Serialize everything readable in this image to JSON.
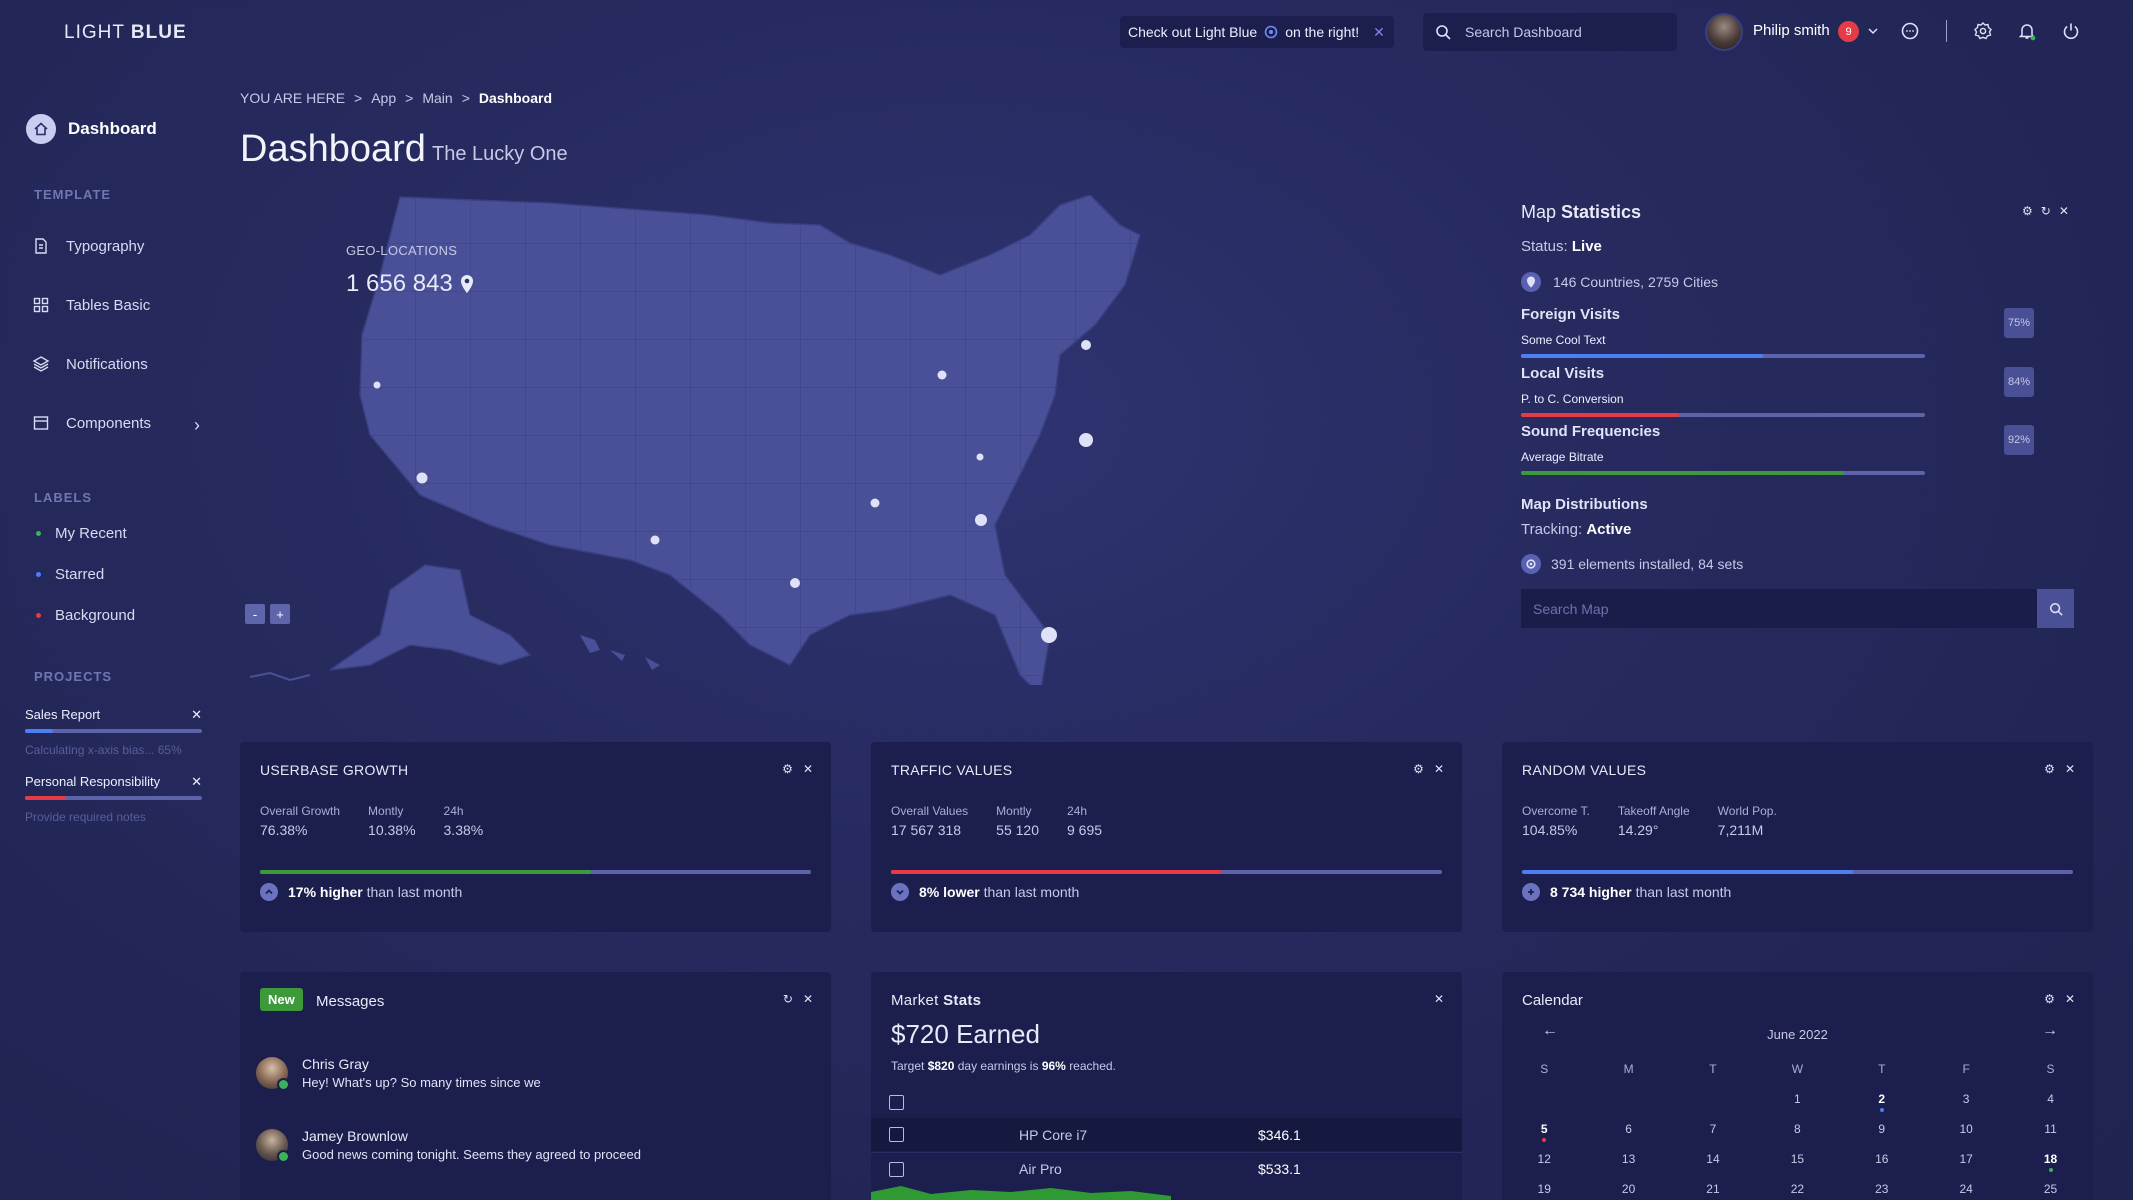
{
  "brand": {
    "light": "LIGHT",
    "bold": "BLUE"
  },
  "sidebar": {
    "dashboard": "Dashboard",
    "template_label": "TEMPLATE",
    "items": [
      {
        "label": "Typography",
        "icon": "document-icon"
      },
      {
        "label": "Tables Basic",
        "icon": "grid-icon"
      },
      {
        "label": "Notifications",
        "icon": "layers-icon"
      },
      {
        "label": "Components",
        "icon": "window-icon"
      }
    ],
    "labels_label": "LABELS",
    "labels": [
      {
        "label": "My Recent",
        "color": "#3bb35a"
      },
      {
        "label": "Starred",
        "color": "#4c7ff2"
      },
      {
        "label": "Background",
        "color": "#e53b46"
      }
    ],
    "projects_label": "PROJECTS",
    "projects": [
      {
        "name": "Sales Report",
        "desc": "Calculating x-axis bias... 65%",
        "progress": 0.16,
        "color": "#4c7ff2"
      },
      {
        "name": "Personal Responsibility",
        "desc": "Provide required notes",
        "progress": 0.23,
        "color": "#e53b46"
      }
    ]
  },
  "header": {
    "promo_pre": "Check out Light Blue",
    "promo_post": "on the right!",
    "search_placeholder": "Search Dashboard",
    "user_name": "Philip smith",
    "notif_count": "9"
  },
  "breadcrumb": {
    "prefix": "YOU ARE HERE",
    "items": [
      "App",
      "Main"
    ],
    "current": "Dashboard"
  },
  "page": {
    "title": "Dashboard",
    "subtitle": "The Lucky One"
  },
  "geo": {
    "label": "GEO-LOCATIONS",
    "value": "1 656 843"
  },
  "map_stats": {
    "title_light": "Map",
    "title_bold": "Statistics",
    "status_label": "Status:",
    "status_value": "Live",
    "countries": "146 Countries, 2759 Cities",
    "rows": [
      {
        "title": "Foreign Visits",
        "sub": "Some Cool Text",
        "pct": "75%",
        "progress": 0.6,
        "color": "#4c7ff2"
      },
      {
        "title": "Local Visits",
        "sub": "P. to C. Conversion",
        "pct": "84%",
        "progress": 0.39,
        "color": "#e53b46"
      },
      {
        "title": "Sound Frequencies",
        "sub": "Average Bitrate",
        "pct": "92%",
        "progress": 0.8,
        "color": "#3d9a3a"
      }
    ],
    "dist_title": "Map Distributions",
    "tracking_label": "Tracking:",
    "tracking_value": "Active",
    "elements": "391 elements installed, 84 sets",
    "search_placeholder": "Search Map"
  },
  "widgets": {
    "userbase": {
      "title": "USERBASE GROWTH",
      "kpis": [
        {
          "k": "Overall Growth",
          "v": "76.38%"
        },
        {
          "k": "Montly",
          "v": "10.38%"
        },
        {
          "k": "24h",
          "v": "3.38%"
        }
      ],
      "progress": 0.6,
      "color": "#3d9a3a",
      "foot_bold": "17% higher",
      "foot_rest": "than last month"
    },
    "traffic": {
      "title": "TRAFFIC VALUES",
      "kpis": [
        {
          "k": "Overall Values",
          "v": "17 567 318"
        },
        {
          "k": "Montly",
          "v": "55 120"
        },
        {
          "k": "24h",
          "v": "9 695"
        }
      ],
      "progress": 0.6,
      "color": "#e53b46",
      "foot_bold": "8% lower",
      "foot_rest": "than last month"
    },
    "random": {
      "title": "RANDOM VALUES",
      "kpis": [
        {
          "k": "Overcome T.",
          "v": "104.85%"
        },
        {
          "k": "Takeoff Angle",
          "v": "14.29°"
        },
        {
          "k": "World Pop.",
          "v": "7,211M"
        }
      ],
      "progress": 0.6,
      "color": "#4c7ff2",
      "foot_bold": "8 734 higher",
      "foot_rest": "than last month"
    },
    "messages": {
      "badge": "New",
      "title": "Messages",
      "items": [
        {
          "name": "Chris Gray",
          "text": "Hey! What's up? So many times since we"
        },
        {
          "name": "Jamey Brownlow",
          "text": "Good news coming tonight. Seems they agreed to proceed"
        }
      ]
    },
    "market": {
      "title_light": "Market",
      "title_bold": "Stats",
      "earned": "$720 Earned",
      "target_pre": "Target",
      "target_amt": "$820",
      "target_mid": "day earnings is",
      "target_pct": "96%",
      "target_post": "reached.",
      "rows": [
        {
          "name": "HP Core i7",
          "price": "$346.1"
        },
        {
          "name": "Air Pro",
          "price": "$533.1"
        }
      ]
    },
    "calendar": {
      "title": "Calendar",
      "month": "June 2022",
      "days": [
        "S",
        "M",
        "T",
        "W",
        "T",
        "F",
        "S"
      ],
      "weeks": [
        [
          "",
          "",
          "",
          "1",
          "2",
          "3",
          "4"
        ],
        [
          "5",
          "6",
          "7",
          "8",
          "9",
          "10",
          "11"
        ],
        [
          "12",
          "13",
          "14",
          "15",
          "16",
          "17",
          "18"
        ],
        [
          "19",
          "20",
          "21",
          "22",
          "23",
          "24",
          "25"
        ]
      ]
    }
  }
}
